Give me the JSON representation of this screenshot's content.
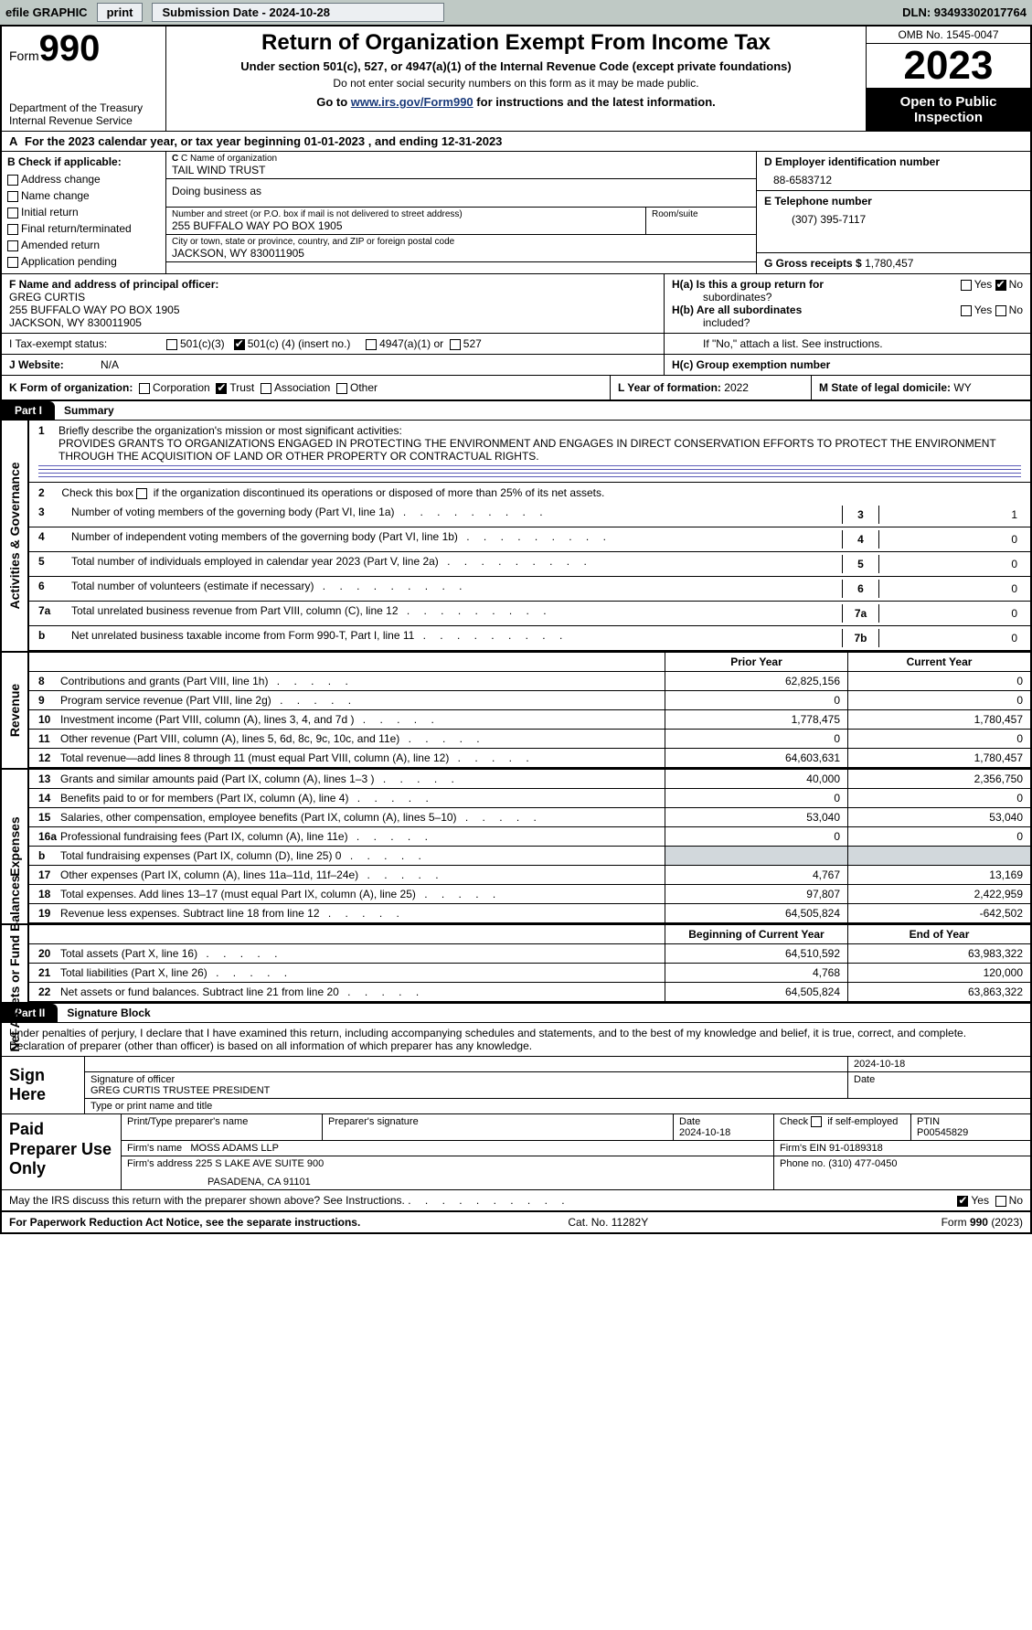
{
  "top_bar": {
    "efile_label": "efile GRAPHIC",
    "print": "print",
    "submission": "Submission Date - 2024-10-28",
    "dln": "DLN: 93493302017764"
  },
  "header": {
    "form_word": "Form",
    "form_number": "990",
    "dept": "Department of the Treasury",
    "irs": "Internal Revenue Service",
    "title": "Return of Organization Exempt From Income Tax",
    "subtitle": "Under section 501(c), 527, or 4947(a)(1) of the Internal Revenue Code (except private foundations)",
    "note1": "Do not enter social security numbers on this form as it may be made public.",
    "note2_prefix": "Go to ",
    "note2_link": "www.irs.gov/Form990",
    "note2_suffix": " for instructions and the latest information.",
    "omb": "OMB No. 1545-0047",
    "year": "2023",
    "open_public": "Open to Public",
    "inspection": "Inspection"
  },
  "lineA": "For the 2023 calendar year, or tax year beginning 01-01-2023    , and ending 12-31-2023",
  "boxB": {
    "title": "B Check if applicable:",
    "opts": [
      "Address change",
      "Name change",
      "Initial return",
      "Final return/terminated",
      "Amended return",
      "Application pending"
    ]
  },
  "boxC": {
    "label": "C Name of organization",
    "name": "TAIL WIND TRUST",
    "dba_label": "Doing business as",
    "addr_label": "Number and street (or P.O. box if mail is not delivered to street address)",
    "addr": "255 BUFFALO WAY PO BOX 1905",
    "room_label": "Room/suite",
    "city_label": "City or town, state or province, country, and ZIP or foreign postal code",
    "city": "JACKSON, WY  830011905"
  },
  "boxD": {
    "ein_label": "D Employer identification number",
    "ein": "88-6583712",
    "tel_label": "E Telephone number",
    "tel": "(307) 395-7117",
    "gross_label": "G Gross receipts $",
    "gross": "1,780,457"
  },
  "boxF": {
    "label": "F  Name and address of principal officer:",
    "name": "GREG CURTIS",
    "addr1": "255 BUFFALO WAY PO BOX 1905",
    "addr2": "JACKSON, WY  830011905"
  },
  "boxH": {
    "ha1": "H(a)  Is this a group return for",
    "ha2": "subordinates?",
    "hb1": "H(b)  Are all subordinates",
    "hb2": "included?",
    "hb3": "If \"No,\" attach a list. See instructions.",
    "hc": "H(c)  Group exemption number "
  },
  "boxI": {
    "label": "I    Tax-exempt status:",
    "o1": "501(c)(3)",
    "o2_pre": "501(c) (",
    "o2_num": "4",
    "o2_post": ") (insert no.)",
    "o3": "4947(a)(1) or",
    "o4": "527"
  },
  "boxJ": {
    "label": "J    Website: ",
    "val": "N/A"
  },
  "boxK": {
    "label": "K Form of organization:",
    "o1": "Corporation",
    "o2": "Trust",
    "o3": "Association",
    "o4": "Other"
  },
  "boxL": {
    "label": "L Year of formation:",
    "val": "2022"
  },
  "boxM": {
    "label": "M State of legal domicile:",
    "val": "WY"
  },
  "part1": {
    "tab": "Part I",
    "title": "Summary",
    "side_ag": "Activities & Governance",
    "side_rev": "Revenue",
    "side_exp": "Expenses",
    "side_net": "Net Assets or Fund Balances",
    "l1_label": "Briefly describe the organization's mission or most significant activities:",
    "l1_text": "PROVIDES GRANTS TO ORGANIZATIONS ENGAGED IN PROTECTING THE ENVIRONMENT AND ENGAGES IN DIRECT CONSERVATION EFFORTS TO PROTECT THE ENVIRONMENT THROUGH THE ACQUISITION OF LAND OR OTHER PROPERTY OR CONTRACTUAL RIGHTS.",
    "l2": "Check this box        if the organization discontinued its operations or disposed of more than 25% of its net assets.",
    "lines_simple": [
      {
        "n": "3",
        "t": "Number of voting members of the governing body (Part VI, line 1a)",
        "rn": "3",
        "v": "1"
      },
      {
        "n": "4",
        "t": "Number of independent voting members of the governing body (Part VI, line 1b)",
        "rn": "4",
        "v": "0"
      },
      {
        "n": "5",
        "t": "Total number of individuals employed in calendar year 2023 (Part V, line 2a)",
        "rn": "5",
        "v": "0"
      },
      {
        "n": "6",
        "t": "Total number of volunteers (estimate if necessary)",
        "rn": "6",
        "v": "0"
      },
      {
        "n": "7a",
        "t": "Total unrelated business revenue from Part VIII, column (C), line 12",
        "rn": "7a",
        "v": "0"
      },
      {
        "n": "b",
        "t": "Net unrelated business taxable income from Form 990-T, Part I, line 11",
        "rn": "7b",
        "v": "0"
      }
    ],
    "hdr_prior": "Prior Year",
    "hdr_curr": "Current Year",
    "revenue_rows": [
      {
        "n": "8",
        "t": "Contributions and grants (Part VIII, line 1h)",
        "c1": "62,825,156",
        "c2": "0"
      },
      {
        "n": "9",
        "t": "Program service revenue (Part VIII, line 2g)",
        "c1": "0",
        "c2": "0"
      },
      {
        "n": "10",
        "t": "Investment income (Part VIII, column (A), lines 3, 4, and 7d )",
        "c1": "1,778,475",
        "c2": "1,780,457"
      },
      {
        "n": "11",
        "t": "Other revenue (Part VIII, column (A), lines 5, 6d, 8c, 9c, 10c, and 11e)",
        "c1": "0",
        "c2": "0"
      },
      {
        "n": "12",
        "t": "Total revenue—add lines 8 through 11 (must equal Part VIII, column (A), line 12)",
        "c1": "64,603,631",
        "c2": "1,780,457"
      }
    ],
    "expense_rows": [
      {
        "n": "13",
        "t": "Grants and similar amounts paid (Part IX, column (A), lines 1–3 )",
        "c1": "40,000",
        "c2": "2,356,750"
      },
      {
        "n": "14",
        "t": "Benefits paid to or for members (Part IX, column (A), line 4)",
        "c1": "0",
        "c2": "0"
      },
      {
        "n": "15",
        "t": "Salaries, other compensation, employee benefits (Part IX, column (A), lines 5–10)",
        "c1": "53,040",
        "c2": "53,040"
      },
      {
        "n": "16a",
        "t": "Professional fundraising fees (Part IX, column (A), line 11e)",
        "c1": "0",
        "c2": "0"
      },
      {
        "n": "b",
        "t": "Total fundraising expenses (Part IX, column (D), line 25) 0",
        "c1": "",
        "c2": "",
        "shade": true
      },
      {
        "n": "17",
        "t": "Other expenses (Part IX, column (A), lines 11a–11d, 11f–24e)",
        "c1": "4,767",
        "c2": "13,169"
      },
      {
        "n": "18",
        "t": "Total expenses. Add lines 13–17 (must equal Part IX, column (A), line 25)",
        "c1": "97,807",
        "c2": "2,422,959"
      },
      {
        "n": "19",
        "t": "Revenue less expenses. Subtract line 18 from line 12",
        "c1": "64,505,824",
        "c2": "-642,502"
      }
    ],
    "hdr_boy": "Beginning of Current Year",
    "hdr_eoy": "End of Year",
    "net_rows": [
      {
        "n": "20",
        "t": "Total assets (Part X, line 16)",
        "c1": "64,510,592",
        "c2": "63,983,322"
      },
      {
        "n": "21",
        "t": "Total liabilities (Part X, line 26)",
        "c1": "4,768",
        "c2": "120,000"
      },
      {
        "n": "22",
        "t": "Net assets or fund balances. Subtract line 21 from line 20",
        "c1": "64,505,824",
        "c2": "63,863,322"
      }
    ]
  },
  "part2": {
    "tab": "Part II",
    "title": "Signature Block",
    "perjury": "Under penalties of perjury, I declare that I have examined this return, including accompanying schedules and statements, and to the best of my knowledge and belief, it is true, correct, and complete. Declaration of preparer (other than officer) is based on all information of which preparer has any knowledge.",
    "sign_here": "Sign Here",
    "sig_date": "2024-10-18",
    "sig_officer_lbl": "Signature of officer",
    "sig_officer_name": "GREG CURTIS  TRUSTEE PRESIDENT",
    "sig_type_lbl": "Type or print name and title",
    "date_lbl": "Date",
    "paid": "Paid Preparer Use Only",
    "pp_name_lbl": "Print/Type preparer's name",
    "pp_sig_lbl": "Preparer's signature",
    "pp_date": "2024-10-18",
    "pp_selfemp": "Check         if self-employed",
    "pp_ptin_lbl": "PTIN",
    "pp_ptin": "P00545829",
    "firm_name_lbl": "Firm's name  ",
    "firm_name": "MOSS ADAMS LLP",
    "firm_ein_lbl": "Firm's EIN  ",
    "firm_ein": "91-0189318",
    "firm_addr_lbl": "Firm's address ",
    "firm_addr1": "225 S LAKE AVE SUITE 900",
    "firm_addr2": "PASADENA, CA  91101",
    "firm_phone_lbl": "Phone no.",
    "firm_phone": "(310) 477-0450",
    "discuss": "May the IRS discuss this return with the preparer shown above? See Instructions.",
    "yes": "Yes",
    "no": "No"
  },
  "footer": {
    "left": "For Paperwork Reduction Act Notice, see the separate instructions.",
    "mid": "Cat. No. 11282Y",
    "right_pre": "Form ",
    "right_bold": "990",
    "right_post": " (2023)"
  },
  "colors": {
    "topbar_bg": "#bfc9c5",
    "btn_bg": "#eceff2",
    "shade_bg": "#d2d8dc",
    "link": "#1a3a7a"
  }
}
